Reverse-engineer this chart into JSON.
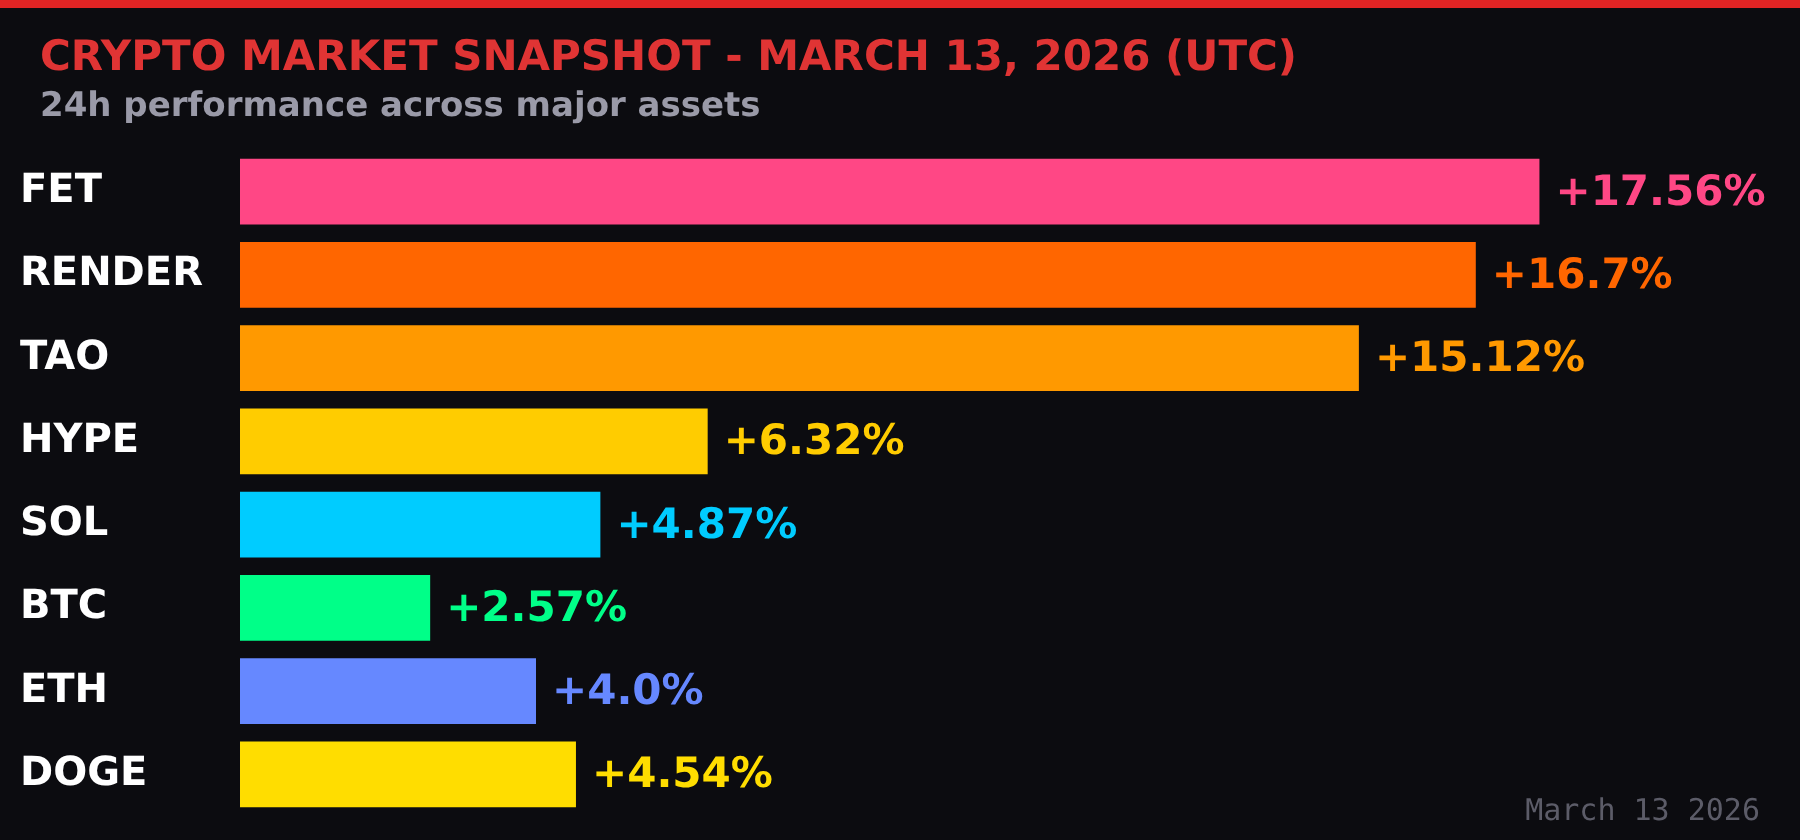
{
  "chart_data": {
    "type": "bar",
    "orientation": "horizontal",
    "title": "CRYPTO MARKET SNAPSHOT - MARCH 13, 2026 (UTC)",
    "subtitle": "24h performance across major assets",
    "categories": [
      "FET",
      "RENDER",
      "TAO",
      "HYPE",
      "SOL",
      "BTC",
      "ETH",
      "DOGE"
    ],
    "values": [
      17.56,
      16.7,
      15.12,
      6.32,
      4.87,
      2.57,
      4.0,
      4.54
    ],
    "colors": [
      "#ff4785",
      "#ff6600",
      "#ff9900",
      "#ffcc00",
      "#00ccff",
      "#00ff88",
      "#6688ff",
      "#ffdd00"
    ],
    "value_labels": [
      "+17.56%",
      "+16.7%",
      "+15.12%",
      "+6.32%",
      "+4.87%",
      "+2.57%",
      "+4.0%",
      "+4.54%"
    ],
    "tick_labels": "y",
    "annotations": [
      "March 13 2026"
    ]
  }
}
